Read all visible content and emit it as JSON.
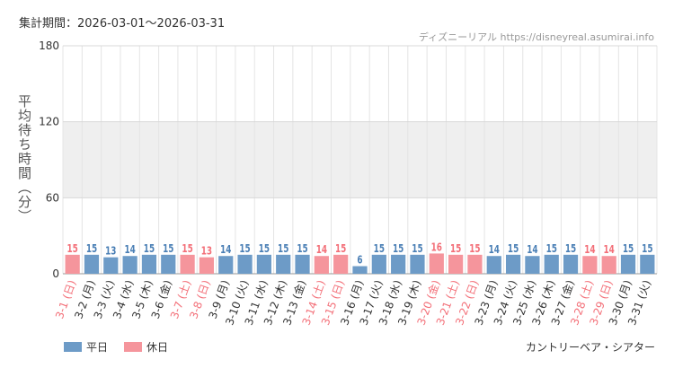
{
  "period": "集計期間：2026-03-01〜2026-03-31",
  "source": "ディズニーリアル https://disneyreal.asumirai.info",
  "attraction": "カントリーベア・シアター",
  "colors": {
    "weekday": "#6d9bc7",
    "holiday": "#f5959c",
    "weekday_text": "#4a7fb5",
    "holiday_text": "#f36f78"
  },
  "chart_data": {
    "type": "bar",
    "ylabel": "平均待ち時間（分）",
    "ylim": [
      0,
      180
    ],
    "yticks": [
      0,
      60,
      120,
      180
    ],
    "shaded_band": [
      60,
      120
    ],
    "legend": [
      {
        "label": "平日",
        "kind": "weekday"
      },
      {
        "label": "休日",
        "kind": "holiday"
      }
    ],
    "categories": [
      "3-1 (日)",
      "3-2 (月)",
      "3-3 (火)",
      "3-4 (水)",
      "3-5 (木)",
      "3-6 (金)",
      "3-7 (土)",
      "3-8 (日)",
      "3-9 (月)",
      "3-10 (火)",
      "3-11 (水)",
      "3-12 (木)",
      "3-13 (金)",
      "3-14 (土)",
      "3-15 (日)",
      "3-16 (月)",
      "3-17 (火)",
      "3-18 (水)",
      "3-19 (木)",
      "3-20 (金)",
      "3-21 (土)",
      "3-22 (日)",
      "3-23 (月)",
      "3-24 (火)",
      "3-25 (水)",
      "3-26 (木)",
      "3-27 (金)",
      "3-28 (土)",
      "3-29 (日)",
      "3-30 (月)",
      "3-31 (火)"
    ],
    "values": [
      15,
      15,
      13,
      14,
      15,
      15,
      15,
      13,
      14,
      15,
      15,
      15,
      15,
      14,
      15,
      6,
      15,
      15,
      15,
      16,
      15,
      15,
      14,
      15,
      14,
      15,
      15,
      14,
      14,
      15,
      15
    ],
    "kinds": [
      "holiday",
      "weekday",
      "weekday",
      "weekday",
      "weekday",
      "weekday",
      "holiday",
      "holiday",
      "weekday",
      "weekday",
      "weekday",
      "weekday",
      "weekday",
      "holiday",
      "holiday",
      "weekday",
      "weekday",
      "weekday",
      "weekday",
      "holiday",
      "holiday",
      "holiday",
      "weekday",
      "weekday",
      "weekday",
      "weekday",
      "weekday",
      "holiday",
      "holiday",
      "weekday",
      "weekday"
    ]
  }
}
